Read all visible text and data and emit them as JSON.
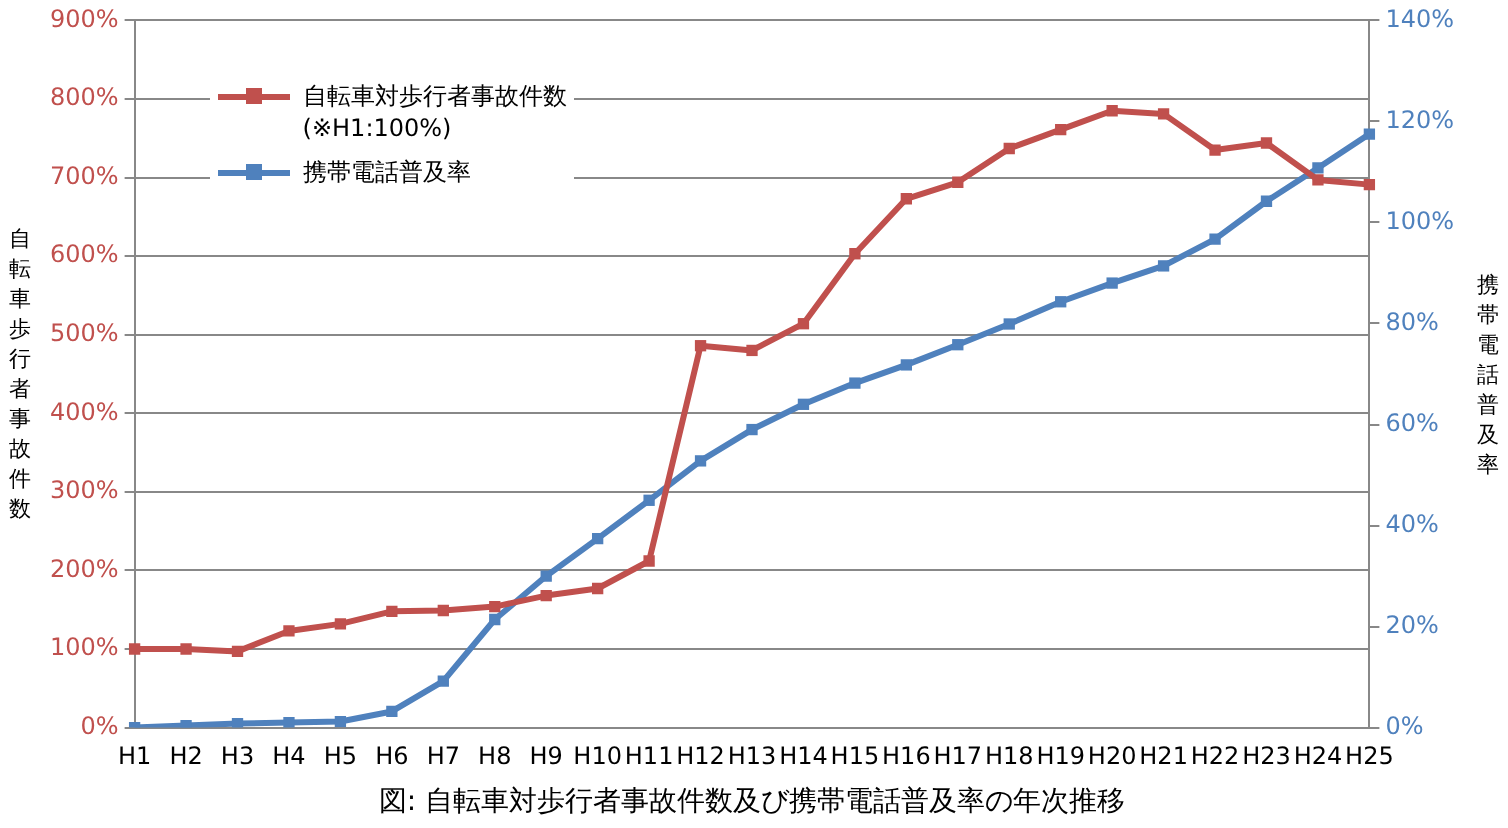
{
  "chart_data": {
    "type": "line",
    "title": "図: 自転車対歩行者事故件数及び携帯電話普及率の年次推移",
    "ylabel": "自転車歩行者事故件数",
    "y2label": "携帯電話普及率",
    "categories": [
      "H1",
      "H2",
      "H3",
      "H4",
      "H5",
      "H6",
      "H7",
      "H8",
      "H9",
      "H10",
      "H11",
      "H12",
      "H13",
      "H14",
      "H15",
      "H16",
      "H17",
      "H18",
      "H19",
      "H20",
      "H21",
      "H22",
      "H23",
      "H24",
      "H25"
    ],
    "series": [
      {
        "name": "自転車対歩行者事故件数\n(※H1:100%)",
        "color": "#c0504d",
        "values": [
          100,
          100,
          97,
          123,
          132,
          148,
          149,
          154,
          168,
          177,
          212,
          486,
          480,
          514,
          603,
          673,
          694,
          737,
          761,
          785,
          781,
          735,
          744,
          697,
          691
        ]
      },
      {
        "name": "携帯電話普及率",
        "color": "#4f81bd",
        "axis": "y2",
        "values": [
          0,
          0.4,
          0.8,
          1,
          1.2,
          3.2,
          9.2,
          21.4,
          30,
          37.4,
          45,
          52.8,
          59,
          64,
          68.2,
          71.8,
          75.8,
          79.9,
          84.3,
          88,
          91.4,
          96.7,
          104.2,
          110.8,
          117.5
        ]
      }
    ],
    "ylim": [
      0,
      900
    ],
    "yticks": [
      {
        "value": 0,
        "label": "0%"
      },
      {
        "value": 100,
        "label": "100%"
      },
      {
        "value": 200,
        "label": "200%"
      },
      {
        "value": 300,
        "label": "300%"
      },
      {
        "value": 400,
        "label": "400%"
      },
      {
        "value": 500,
        "label": "500%"
      },
      {
        "value": 600,
        "label": "600%"
      },
      {
        "value": 700,
        "label": "700%"
      },
      {
        "value": 800,
        "label": "800%"
      },
      {
        "value": 900,
        "label": "900%"
      }
    ],
    "y2lim": [
      0,
      140
    ],
    "y2ticks": [
      {
        "value": 0,
        "label": "0%"
      },
      {
        "value": 20,
        "label": "20%"
      },
      {
        "value": 40,
        "label": "40%"
      },
      {
        "value": 60,
        "label": "60%"
      },
      {
        "value": 80,
        "label": "80%"
      },
      {
        "value": 100,
        "label": "100%"
      },
      {
        "value": 120,
        "label": "120%"
      },
      {
        "value": 140,
        "label": "140%"
      }
    ],
    "grid": "y",
    "legend": "top left",
    "marker": "square",
    "line_style": "solid"
  }
}
